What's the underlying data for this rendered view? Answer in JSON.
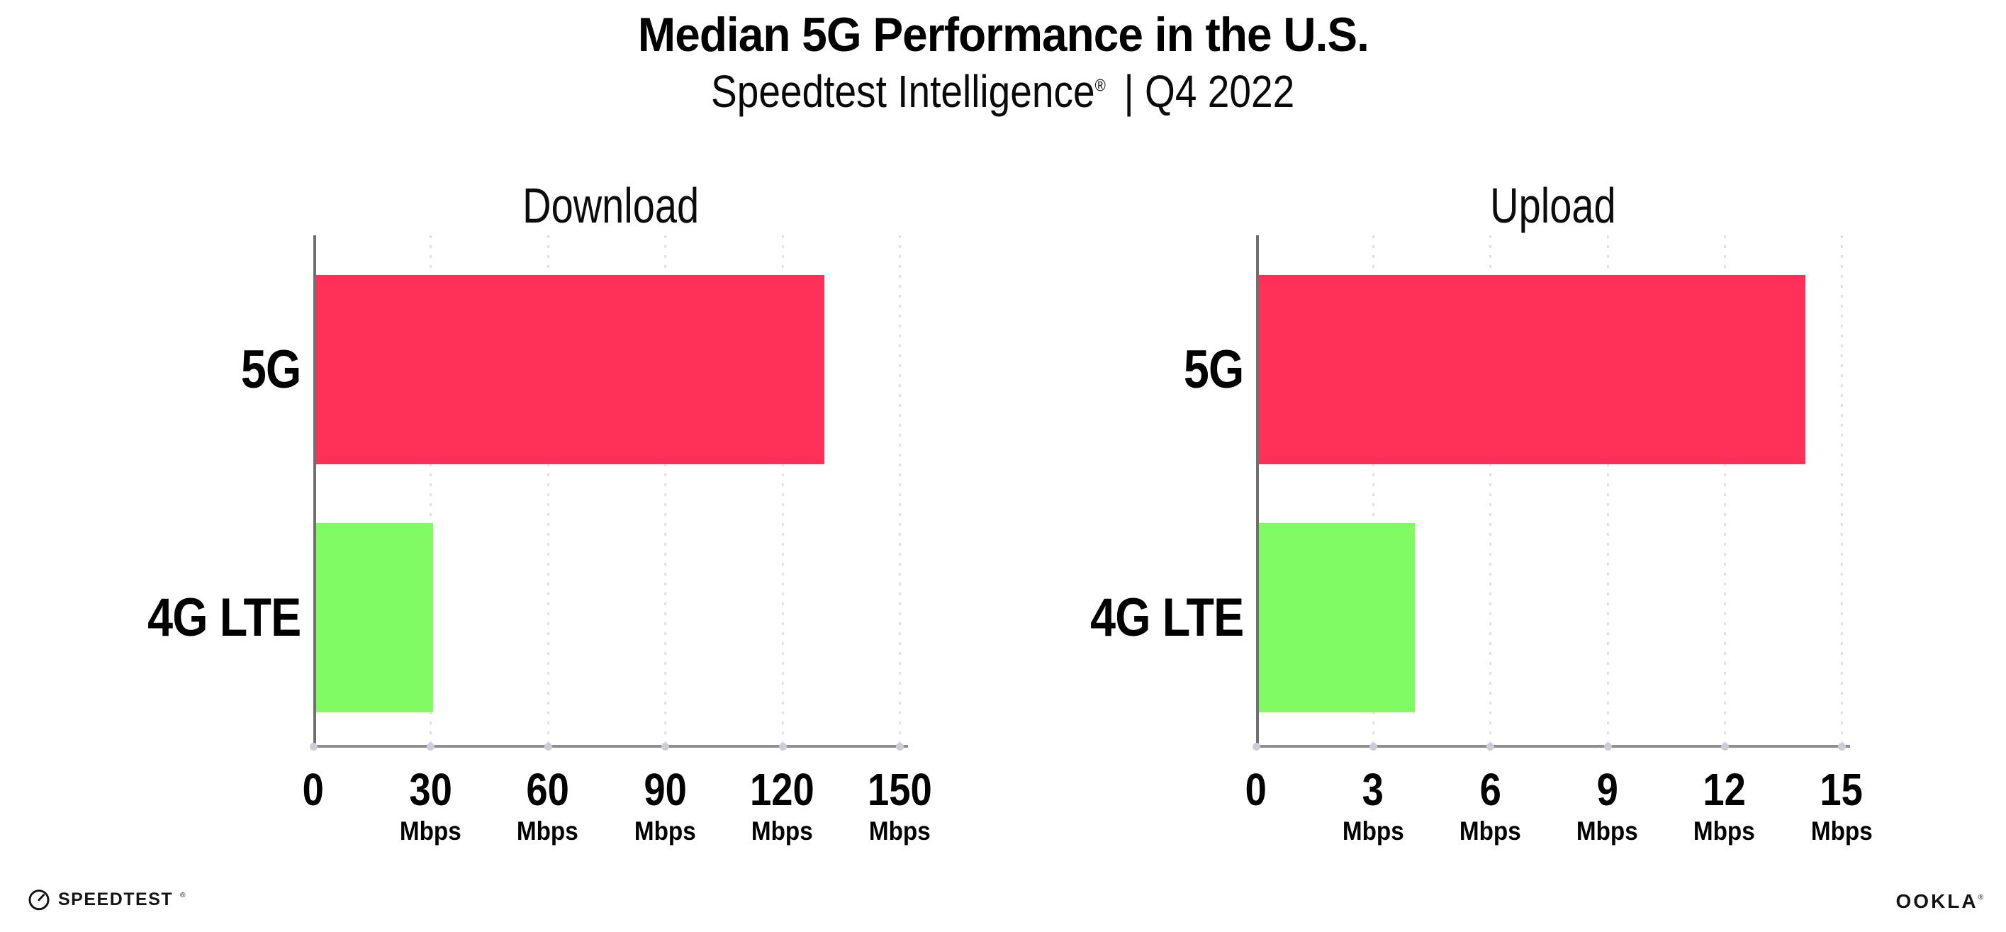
{
  "header": {
    "title": "Median 5G Performance in the U.S.",
    "subtitle_brand": "Speedtest Intelligence",
    "subtitle_reg": "®",
    "subtitle_rest": "| Q4 2022"
  },
  "chart_data": [
    {
      "type": "bar",
      "orientation": "horizontal",
      "title": "Download",
      "categories": [
        "5G",
        "4G LTE"
      ],
      "values": [
        130,
        30
      ],
      "unit": "Mbps",
      "xlabel": "",
      "ylabel": "",
      "xlim": [
        0,
        150
      ],
      "ticks": [
        0,
        30,
        60,
        90,
        120,
        150
      ],
      "bar_colors": [
        "#FF3058",
        "#80FB63"
      ],
      "grid": "vertical-dotted",
      "legend": "none"
    },
    {
      "type": "bar",
      "orientation": "horizontal",
      "title": "Upload",
      "categories": [
        "5G",
        "4G LTE"
      ],
      "values": [
        14,
        4
      ],
      "unit": "Mbps",
      "xlabel": "",
      "ylabel": "",
      "xlim": [
        0,
        15
      ],
      "ticks": [
        0,
        3,
        6,
        9,
        12,
        15
      ],
      "bar_colors": [
        "#FF3058",
        "#80FB63"
      ],
      "grid": "vertical-dotted",
      "legend": "none"
    }
  ],
  "footer": {
    "speedtest_label": "SPEEDTEST",
    "speedtest_reg": "®",
    "ookla_label": "OOKLA",
    "ookla_reg": "®"
  },
  "colors": {
    "bar_5g": "#FF3058",
    "bar_4g": "#80FB63",
    "gridline": "#E0E0EA",
    "axis_y": "#6F6F6F",
    "axis_x": "#8F8F8F",
    "text": "#000000",
    "background": "#FFFFFF"
  }
}
